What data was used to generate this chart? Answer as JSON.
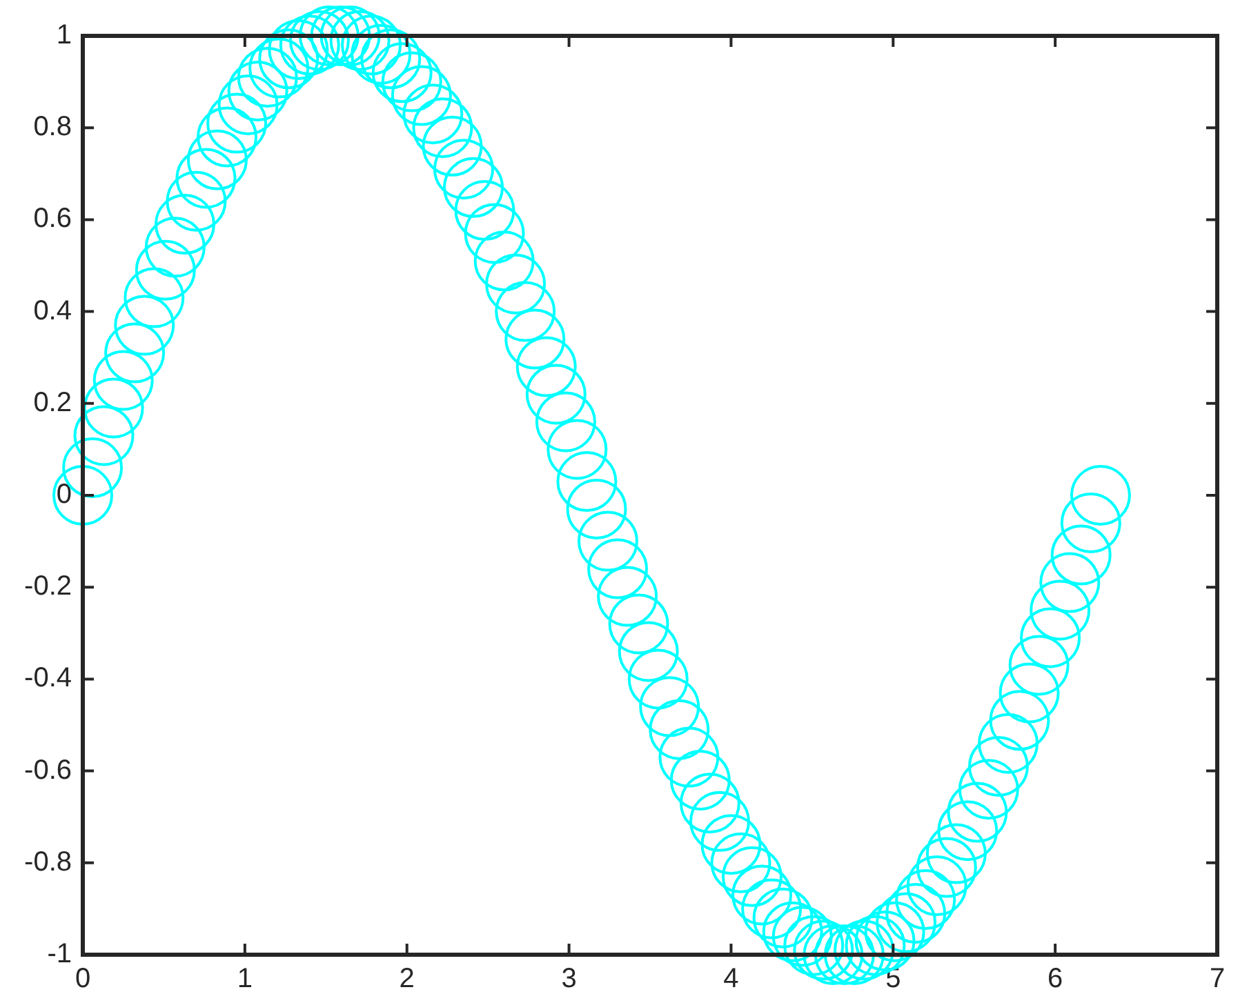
{
  "chart_data": {
    "type": "scatter",
    "color": "#00ffff",
    "marker": "circle",
    "x": [
      0,
      0.06,
      0.13,
      0.19,
      0.25,
      0.32,
      0.38,
      0.44,
      0.51,
      0.57,
      0.63,
      0.7,
      0.76,
      0.83,
      0.89,
      0.95,
      1.02,
      1.08,
      1.14,
      1.21,
      1.27,
      1.33,
      1.4,
      1.46,
      1.52,
      1.59,
      1.65,
      1.71,
      1.78,
      1.84,
      1.9,
      1.97,
      2.03,
      2.09,
      2.16,
      2.22,
      2.28,
      2.35,
      2.41,
      2.48,
      2.54,
      2.6,
      2.67,
      2.73,
      2.79,
      2.86,
      2.92,
      2.98,
      3.05,
      3.11,
      3.17,
      3.24,
      3.3,
      3.36,
      3.43,
      3.49,
      3.55,
      3.62,
      3.68,
      3.74,
      3.81,
      3.87,
      3.93,
      4,
      4.06,
      4.13,
      4.19,
      4.25,
      4.32,
      4.38,
      4.44,
      4.51,
      4.57,
      4.63,
      4.7,
      4.76,
      4.82,
      4.89,
      4.95,
      5.01,
      5.08,
      5.14,
      5.2,
      5.27,
      5.33,
      5.39,
      5.46,
      5.52,
      5.59,
      5.65,
      5.71,
      5.78,
      5.84,
      5.9,
      5.97,
      6.03,
      6.09,
      6.16,
      6.22,
      6.28
    ],
    "values": [
      0,
      0.06,
      0.13,
      0.19,
      0.25,
      0.31,
      0.37,
      0.43,
      0.49,
      0.54,
      0.59,
      0.64,
      0.69,
      0.73,
      0.78,
      0.81,
      0.85,
      0.88,
      0.91,
      0.93,
      0.95,
      0.97,
      0.98,
      0.99,
      1,
      1,
      1,
      0.99,
      0.98,
      0.96,
      0.95,
      0.92,
      0.9,
      0.87,
      0.83,
      0.8,
      0.76,
      0.71,
      0.67,
      0.62,
      0.57,
      0.51,
      0.46,
      0.4,
      0.34,
      0.28,
      0.22,
      0.16,
      0.1,
      0.03,
      -0.03,
      -0.1,
      -0.16,
      -0.22,
      -0.28,
      -0.34,
      -0.4,
      -0.46,
      -0.51,
      -0.57,
      -0.62,
      -0.67,
      -0.71,
      -0.76,
      -0.8,
      -0.83,
      -0.87,
      -0.9,
      -0.92,
      -0.95,
      -0.96,
      -0.98,
      -0.99,
      -1,
      -1,
      -1,
      -0.99,
      -0.98,
      -0.97,
      -0.95,
      -0.93,
      -0.91,
      -0.88,
      -0.85,
      -0.81,
      -0.78,
      -0.73,
      -0.69,
      -0.64,
      -0.59,
      -0.54,
      -0.49,
      -0.43,
      -0.37,
      -0.31,
      -0.25,
      -0.19,
      -0.13,
      -0.06,
      0
    ],
    "xlim": [
      0,
      7
    ],
    "xticks": [
      0,
      1,
      2,
      3,
      4,
      5,
      6,
      7
    ],
    "ylim": [
      -1,
      1
    ],
    "yticks": [
      -1,
      -0.8,
      -0.6,
      -0.4,
      -0.2,
      0,
      0.2,
      0.4,
      0.6,
      0.8,
      1
    ]
  }
}
